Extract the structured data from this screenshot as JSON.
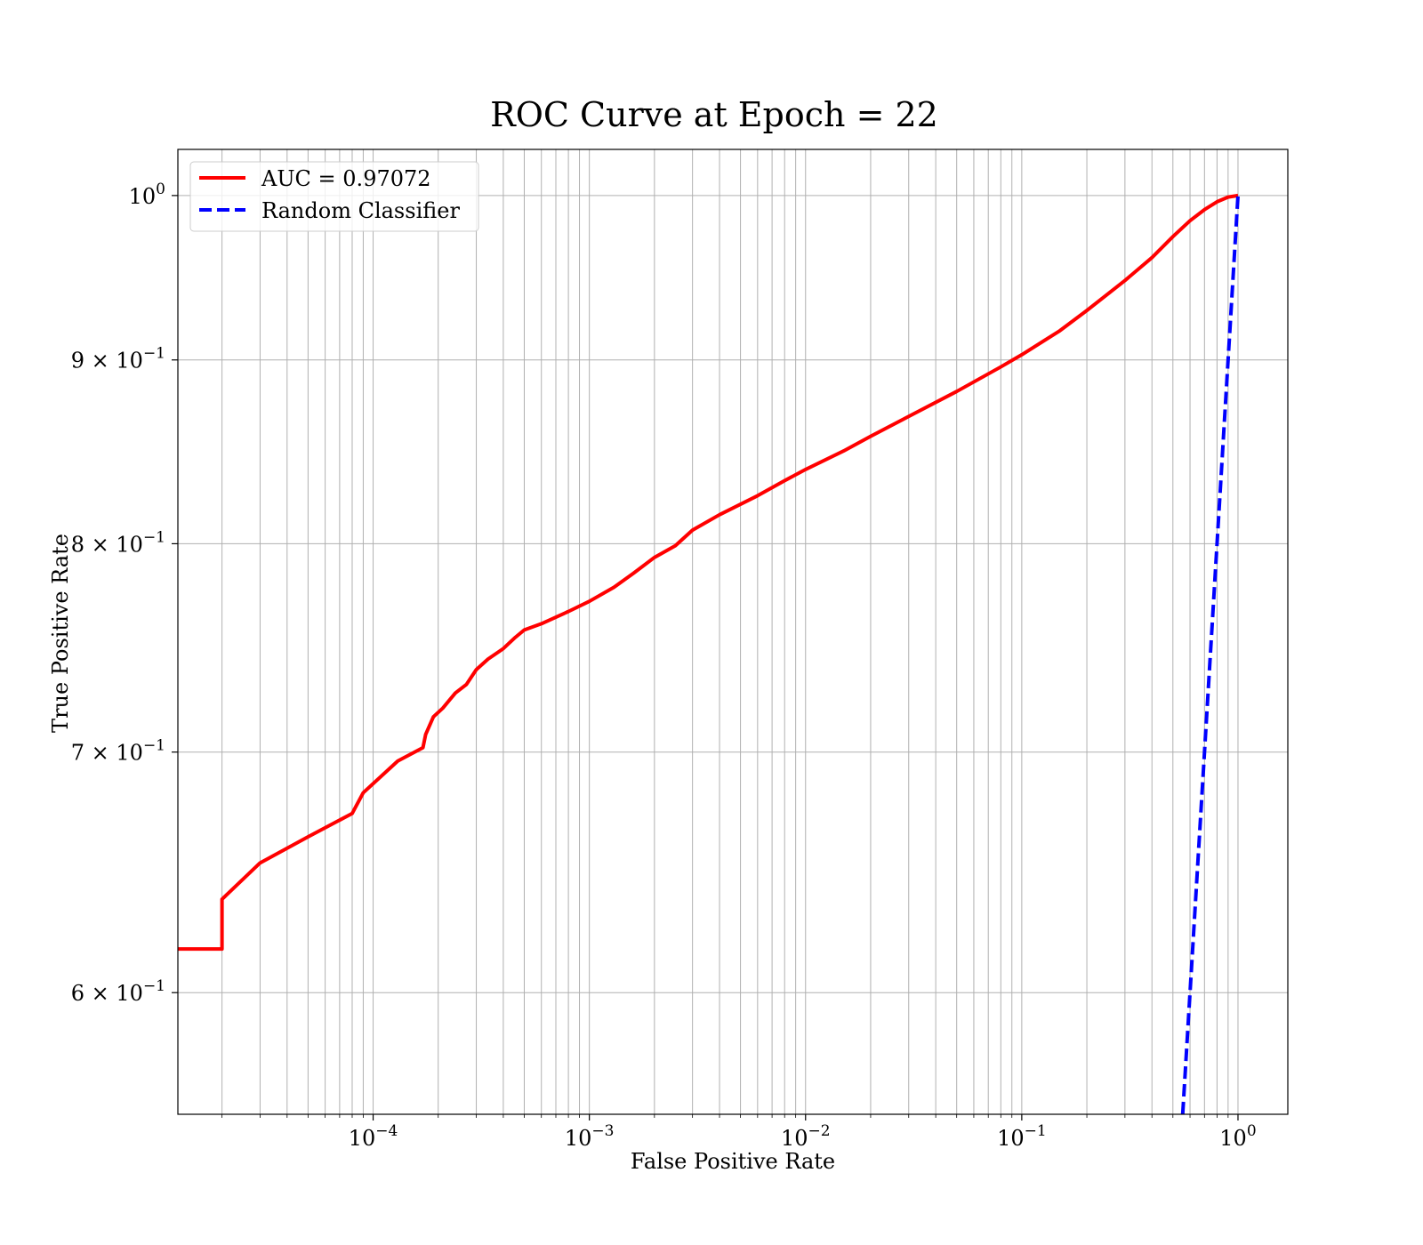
{
  "chart_data": {
    "type": "line",
    "title": "ROC Curve at Epoch = 22",
    "xlabel": "False Positive Rate",
    "ylabel": "True Positive Rate",
    "xscale": "log",
    "yscale": "log",
    "xlim": [
      1.25e-05,
      1.7
    ],
    "ylim": [
      0.555,
      1.03
    ],
    "grid": true,
    "legend_position": "upper-left",
    "x_ticks": [
      {
        "value": 0.0001,
        "base": "10",
        "exp": "−4"
      },
      {
        "value": 0.001,
        "base": "10",
        "exp": "−3"
      },
      {
        "value": 0.01,
        "base": "10",
        "exp": "−2"
      },
      {
        "value": 0.1,
        "base": "10",
        "exp": "−1"
      },
      {
        "value": 1,
        "base": "10",
        "exp": "0"
      }
    ],
    "y_ticks": [
      {
        "value": 0.6,
        "base": "6 × 10",
        "exp": "−1"
      },
      {
        "value": 0.7,
        "base": "7 × 10",
        "exp": "−1"
      },
      {
        "value": 0.8,
        "base": "8 × 10",
        "exp": "−1"
      },
      {
        "value": 0.9,
        "base": "9 × 10",
        "exp": "−1"
      },
      {
        "value": 1.0,
        "base": "10",
        "exp": "0"
      }
    ],
    "series": [
      {
        "name": "AUC = 0.97072",
        "color": "#ff0000",
        "style": "solid",
        "points": [
          [
            1.25e-05,
            0.617
          ],
          [
            2e-05,
            0.617
          ],
          [
            2e-05,
            0.637
          ],
          [
            3e-05,
            0.652
          ],
          [
            5e-05,
            0.663
          ],
          [
            8e-05,
            0.673
          ],
          [
            9e-05,
            0.682
          ],
          [
            0.00013,
            0.696
          ],
          [
            0.00017,
            0.702
          ],
          [
            0.000175,
            0.708
          ],
          [
            0.00019,
            0.716
          ],
          [
            0.00021,
            0.72
          ],
          [
            0.00024,
            0.727
          ],
          [
            0.00027,
            0.731
          ],
          [
            0.0003,
            0.738
          ],
          [
            0.00034,
            0.743
          ],
          [
            0.0004,
            0.748
          ],
          [
            0.00045,
            0.753
          ],
          [
            0.0005,
            0.757
          ],
          [
            0.0006,
            0.76
          ],
          [
            0.0008,
            0.766
          ],
          [
            0.001,
            0.771
          ],
          [
            0.0013,
            0.778
          ],
          [
            0.0016,
            0.785
          ],
          [
            0.002,
            0.793
          ],
          [
            0.0025,
            0.799
          ],
          [
            0.003,
            0.807
          ],
          [
            0.004,
            0.815
          ],
          [
            0.006,
            0.825
          ],
          [
            0.008,
            0.833
          ],
          [
            0.01,
            0.839
          ],
          [
            0.015,
            0.849
          ],
          [
            0.02,
            0.857
          ],
          [
            0.03,
            0.868
          ],
          [
            0.05,
            0.882
          ],
          [
            0.08,
            0.896
          ],
          [
            0.1,
            0.903
          ],
          [
            0.15,
            0.917
          ],
          [
            0.2,
            0.929
          ],
          [
            0.3,
            0.947
          ],
          [
            0.4,
            0.961
          ],
          [
            0.5,
            0.974
          ],
          [
            0.6,
            0.984
          ],
          [
            0.7,
            0.991
          ],
          [
            0.8,
            0.996
          ],
          [
            0.9,
            0.999
          ],
          [
            1.0,
            1.0
          ]
        ]
      },
      {
        "name": "Random Classifier",
        "color": "#0000ff",
        "style": "dashed",
        "points": [
          [
            0.555,
            0.555
          ],
          [
            1.0,
            1.0
          ]
        ]
      }
    ]
  }
}
